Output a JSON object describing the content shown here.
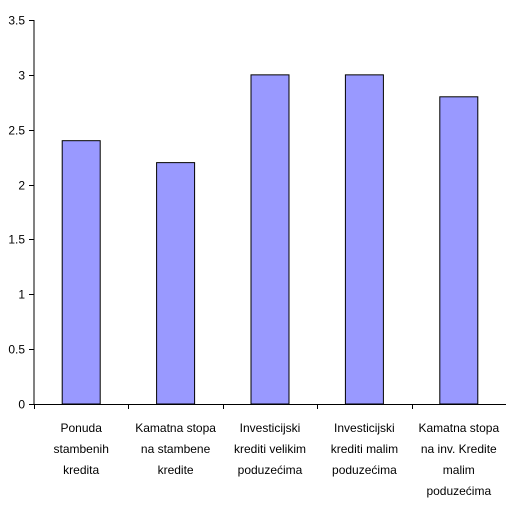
{
  "chart_data": {
    "type": "bar",
    "categories": [
      [
        "Ponuda",
        "stambenih",
        "kredita"
      ],
      [
        "Kamatna stopa",
        "na stambene",
        "kredite"
      ],
      [
        "Investicijski",
        "krediti velikim",
        "poduzećima"
      ],
      [
        "Investicijski",
        "krediti malim",
        "poduzećima"
      ],
      [
        "Kamatna stopa",
        "na inv. Kredite",
        "malim",
        "poduzećima"
      ]
    ],
    "values": [
      2.4,
      2.2,
      3.0,
      3.0,
      2.8
    ],
    "ylim": [
      0,
      3.5
    ],
    "yticks": [
      "0",
      "0.5",
      "1",
      "1.5",
      "2",
      "2.5",
      "3",
      "3.5"
    ],
    "grid": false,
    "title": "",
    "xlabel": "",
    "ylabel": "",
    "colors": {
      "bar_fill": "#9999ff",
      "bar_stroke": "#000000",
      "axis": "#000000"
    }
  }
}
